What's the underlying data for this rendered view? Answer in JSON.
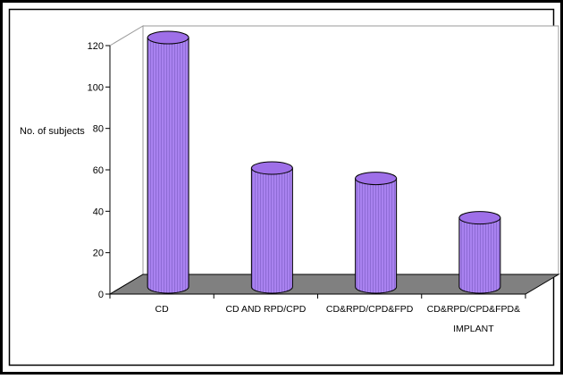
{
  "chart_data": {
    "type": "bar",
    "title": "",
    "xlabel": "",
    "ylabel": "No. of subjects",
    "ylim": [
      0,
      120
    ],
    "yticks": [
      0,
      20,
      40,
      60,
      80,
      100,
      120
    ],
    "grid": false,
    "legend": "none",
    "categories": [
      "CD",
      "CD AND RPD/CPD",
      "CD&RPD/CPD&FPD",
      "CD&RPD/CPD&FPD&\nIMPLANT"
    ],
    "values": [
      123,
      60,
      55,
      36
    ]
  },
  "colors": {
    "bar": "#a982f0",
    "bar_top": "#9e6fe8",
    "floor": "#808080",
    "frame": "#000000"
  }
}
